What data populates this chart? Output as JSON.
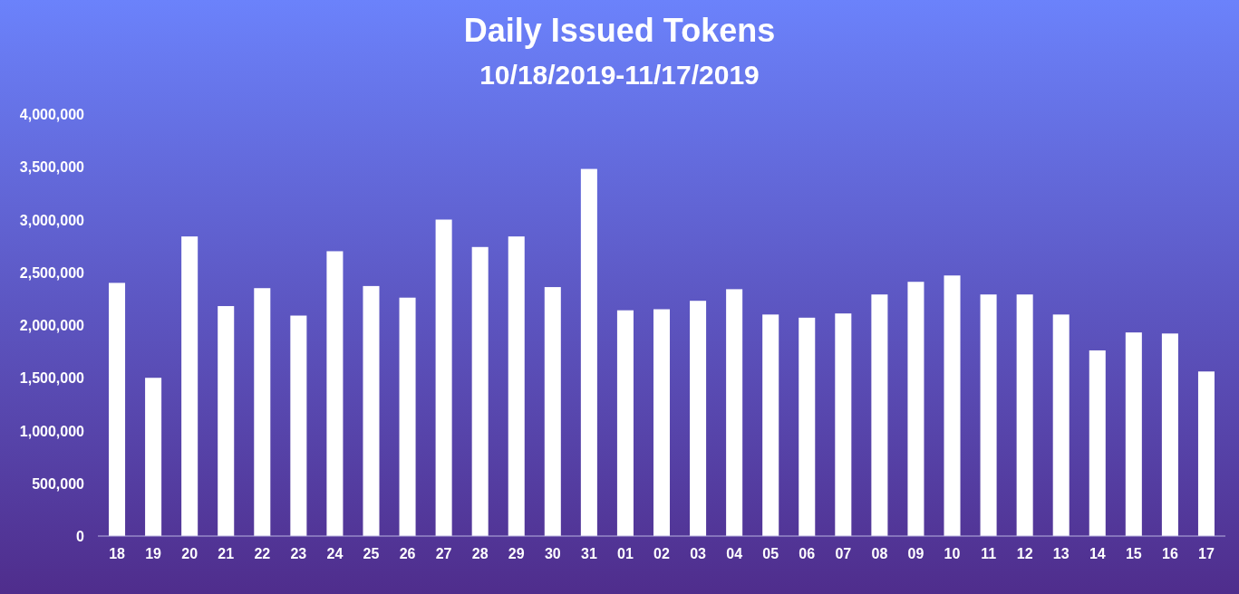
{
  "chart_data": {
    "type": "bar",
    "title": "Daily Issued Tokens",
    "subtitle": "10/18/2019-11/17/2019",
    "categories": [
      "18",
      "19",
      "20",
      "21",
      "22",
      "23",
      "24",
      "25",
      "26",
      "27",
      "28",
      "29",
      "30",
      "31",
      "01",
      "02",
      "03",
      "04",
      "05",
      "06",
      "07",
      "08",
      "09",
      "10",
      "11",
      "12",
      "13",
      "14",
      "15",
      "16",
      "17"
    ],
    "values": [
      2400000,
      1500000,
      2840000,
      2180000,
      2350000,
      2090000,
      2700000,
      2370000,
      2260000,
      3000000,
      2740000,
      2840000,
      2360000,
      3480000,
      2140000,
      2150000,
      2230000,
      2340000,
      2100000,
      2070000,
      2110000,
      2290000,
      2410000,
      2470000,
      2290000,
      2290000,
      2100000,
      1760000,
      1930000,
      1920000,
      1560000
    ],
    "color": "#ffffff",
    "ylim": [
      0,
      4000000
    ],
    "yticks": [
      {
        "value": 0,
        "label": "0"
      },
      {
        "value": 500000,
        "label": "500,000"
      },
      {
        "value": 1000000,
        "label": "1,000,000"
      },
      {
        "value": 1500000,
        "label": "1,500,000"
      },
      {
        "value": 2000000,
        "label": "2,000,000"
      },
      {
        "value": 2500000,
        "label": "2,500,000"
      },
      {
        "value": 3000000,
        "label": "3,000,000"
      },
      {
        "value": 3500000,
        "label": "3,500,000"
      },
      {
        "value": 4000000,
        "label": "4,000,000"
      }
    ]
  }
}
